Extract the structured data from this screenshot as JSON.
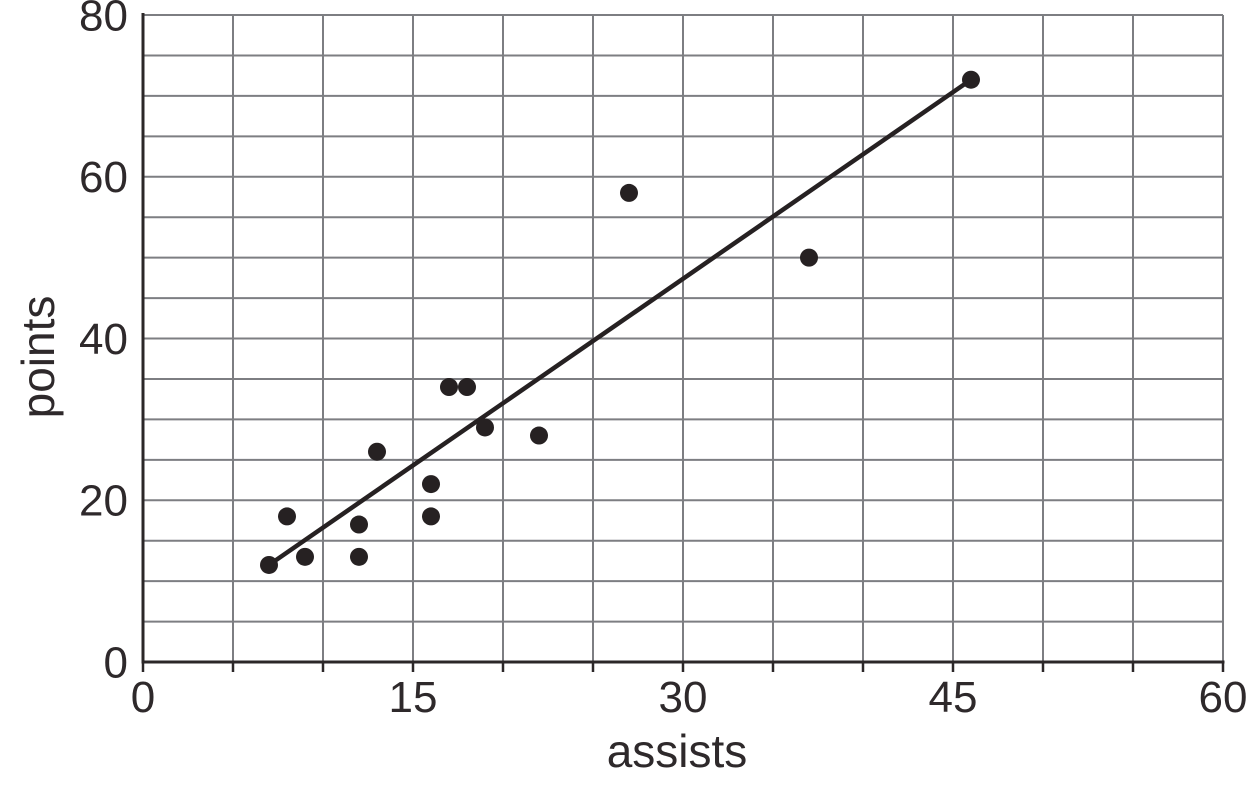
{
  "chart_data": {
    "type": "scatter",
    "title": "",
    "xlabel": "assists",
    "ylabel": "points",
    "xlim": [
      0,
      60
    ],
    "ylim": [
      0,
      80
    ],
    "x_tick_labels": [
      0,
      15,
      30,
      45,
      60
    ],
    "y_tick_labels": [
      0,
      20,
      40,
      60,
      80
    ],
    "grid_step_x": 5,
    "grid_step_y": 5,
    "grid": true,
    "legend": "none",
    "points": [
      [
        7,
        12
      ],
      [
        8,
        18
      ],
      [
        9,
        13
      ],
      [
        12,
        13
      ],
      [
        12,
        17
      ],
      [
        13,
        26
      ],
      [
        16,
        18
      ],
      [
        16,
        22
      ],
      [
        17,
        34
      ],
      [
        18,
        34
      ],
      [
        19,
        29
      ],
      [
        22,
        28
      ],
      [
        27,
        58
      ],
      [
        37,
        50
      ],
      [
        46,
        72
      ]
    ],
    "trend_line": {
      "from": [
        7,
        12
      ],
      "to": [
        46,
        72
      ]
    },
    "colors": {
      "background": "#ffffff",
      "grid": "#7d7e82",
      "axis": "#2b2728",
      "point": "#262122",
      "trend": "#262122",
      "text": "#2e292b"
    }
  }
}
